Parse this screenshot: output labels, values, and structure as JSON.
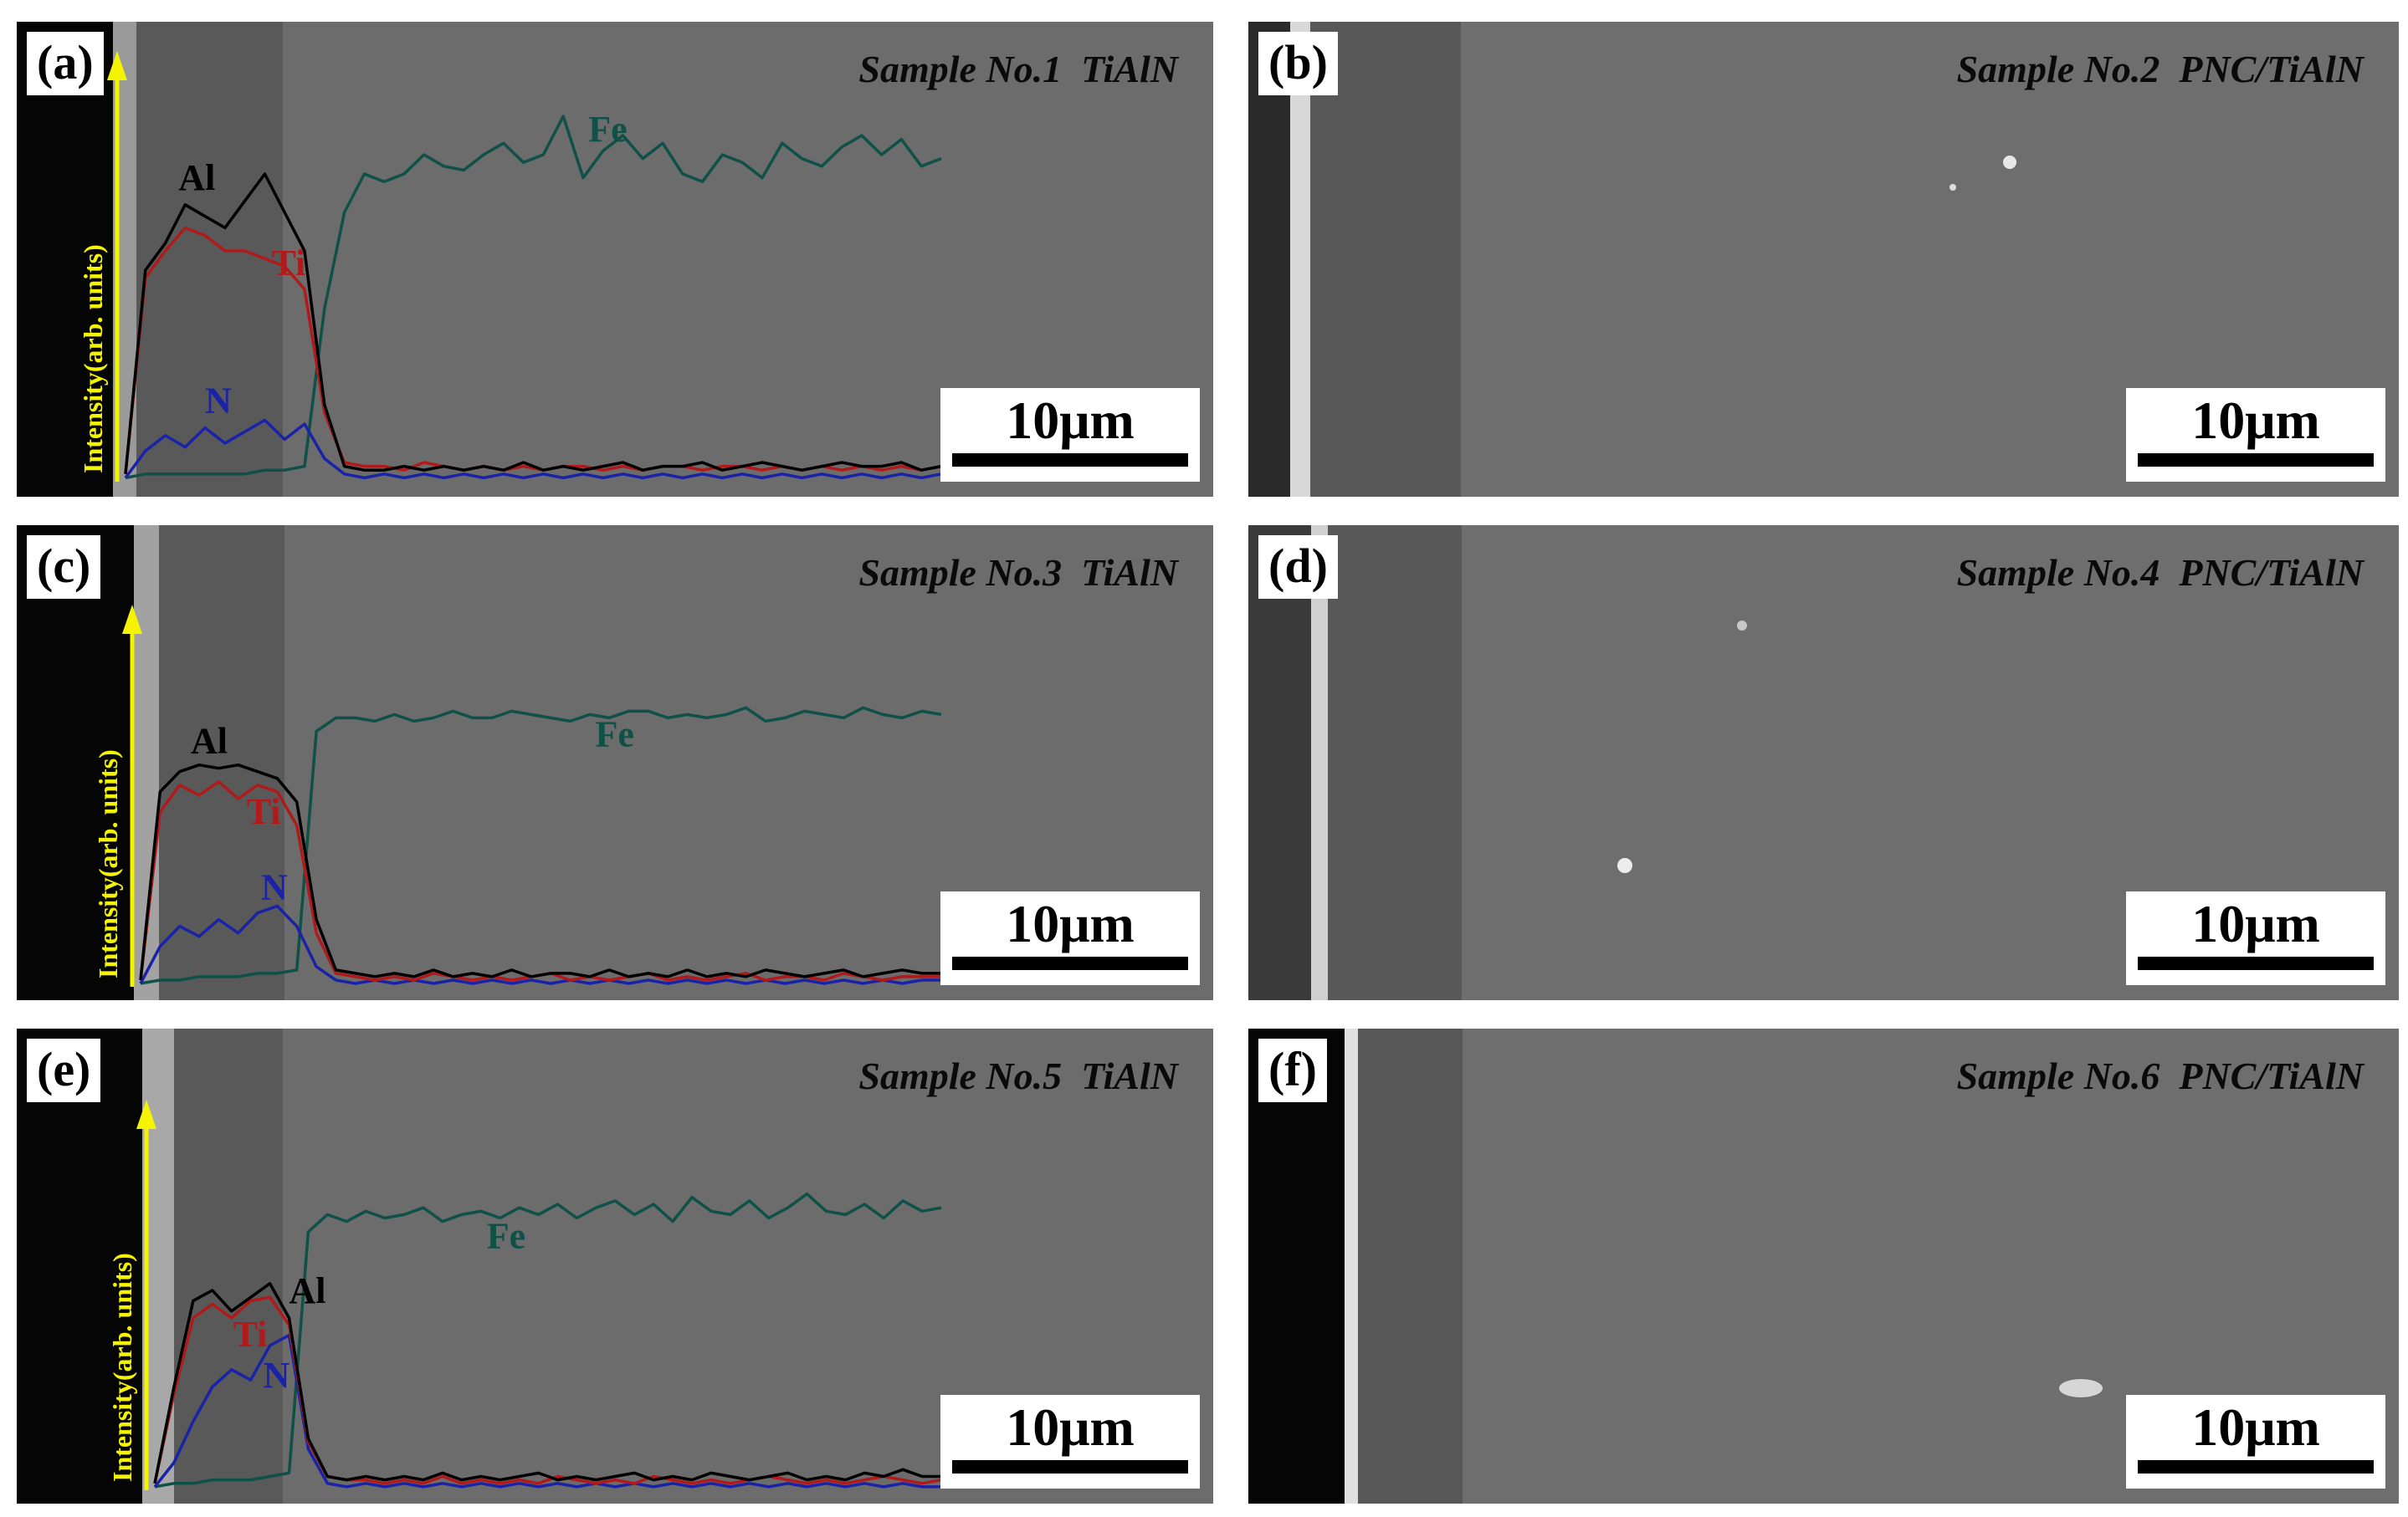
{
  "panels": [
    {
      "label": "(a)",
      "title": "Sample No.1  TiAlN",
      "scale": "10μm",
      "has_profile": true,
      "axis_label": "Intensity(arb. units)",
      "element_labels": {
        "Al": "Al",
        "Ti": "Ti",
        "N": "N",
        "Fe": "Fe"
      }
    },
    {
      "label": "(b)",
      "title": "Sample No.2  PNC/TiAlN",
      "scale": "10μm",
      "has_profile": false
    },
    {
      "label": "(c)",
      "title": "Sample No.3  TiAlN",
      "scale": "10μm",
      "has_profile": true,
      "axis_label": "Intensity(arb. units)",
      "element_labels": {
        "Al": "Al",
        "Ti": "Ti",
        "N": "N",
        "Fe": "Fe"
      }
    },
    {
      "label": "(d)",
      "title": "Sample No.4  PNC/TiAlN",
      "scale": "10μm",
      "has_profile": false
    },
    {
      "label": "(e)",
      "title": "Sample No.5  TiAlN",
      "scale": "10μm",
      "has_profile": true,
      "axis_label": "Intensity(arb. units)",
      "element_labels": {
        "Al": "Al",
        "Ti": "Ti",
        "N": "N",
        "Fe": "Fe"
      }
    },
    {
      "label": "(f)",
      "title": "Sample No.6  PNC/TiAlN",
      "scale": "10μm",
      "has_profile": false
    }
  ],
  "colors": {
    "Al": "#000000",
    "Ti": "#b01a1a",
    "N": "#1a22a8",
    "Fe": "#0f5048",
    "axis": "#f4f400",
    "sem_background": "#6e6e6e",
    "coating": "#5a5a5a"
  },
  "chart_data": [
    {
      "type": "line",
      "panel": "(a)",
      "series": [
        {
          "name": "Al",
          "values": [
            2,
            55,
            62,
            72,
            69,
            66,
            73,
            80,
            70,
            60,
            20,
            4,
            3,
            3,
            4,
            3,
            4,
            3,
            4,
            3,
            5,
            3,
            4,
            3,
            4,
            5,
            3,
            4,
            4,
            5,
            3,
            4,
            5,
            4,
            3,
            4,
            5,
            4,
            4,
            5,
            3,
            4
          ]
        },
        {
          "name": "Ti",
          "values": [
            2,
            53,
            60,
            66,
            64,
            60,
            60,
            58,
            56,
            50,
            18,
            5,
            4,
            4,
            3,
            5,
            4,
            3,
            4,
            3,
            4,
            3,
            4,
            4,
            3,
            4,
            3,
            4,
            4,
            3,
            4,
            4,
            3,
            4,
            3,
            4,
            3,
            4,
            3,
            4,
            3,
            4
          ]
        },
        {
          "name": "N",
          "values": [
            1,
            8,
            12,
            9,
            14,
            10,
            13,
            16,
            11,
            15,
            6,
            2,
            1,
            2,
            1,
            2,
            1,
            2,
            1,
            2,
            1,
            2,
            1,
            2,
            1,
            2,
            1,
            2,
            1,
            2,
            1,
            2,
            1,
            2,
            1,
            2,
            1,
            2,
            1,
            2,
            1,
            2
          ]
        },
        {
          "name": "Fe",
          "values": [
            1,
            2,
            2,
            2,
            2,
            2,
            2,
            3,
            3,
            4,
            45,
            70,
            80,
            78,
            80,
            85,
            82,
            81,
            85,
            88,
            83,
            85,
            95,
            79,
            86,
            90,
            84,
            88,
            80,
            78,
            85,
            83,
            79,
            88,
            84,
            82,
            87,
            90,
            85,
            89,
            82,
            84
          ]
        }
      ]
    },
    {
      "type": "line",
      "panel": "(c)",
      "series": [
        {
          "name": "Al",
          "values": [
            2,
            58,
            64,
            66,
            65,
            66,
            64,
            62,
            55,
            20,
            5,
            4,
            3,
            4,
            3,
            5,
            3,
            4,
            3,
            5,
            3,
            4,
            4,
            3,
            5,
            3,
            4,
            3,
            5,
            3,
            4,
            3,
            5,
            4,
            3,
            4,
            5,
            3,
            4,
            5,
            4,
            4
          ]
        },
        {
          "name": "Ti",
          "values": [
            2,
            52,
            60,
            57,
            61,
            56,
            60,
            58,
            48,
            16,
            4,
            3,
            2,
            3,
            2,
            4,
            3,
            2,
            3,
            2,
            3,
            4,
            2,
            3,
            2,
            3,
            4,
            2,
            3,
            2,
            3,
            4,
            2,
            3,
            3,
            2,
            4,
            3,
            2,
            3,
            3,
            3
          ]
        },
        {
          "name": "N",
          "values": [
            1,
            12,
            18,
            15,
            20,
            16,
            22,
            24,
            18,
            6,
            2,
            1,
            2,
            1,
            2,
            1,
            2,
            1,
            2,
            1,
            2,
            1,
            2,
            1,
            2,
            1,
            2,
            1,
            2,
            1,
            2,
            1,
            2,
            1,
            2,
            1,
            2,
            1,
            2,
            1,
            2,
            2
          ]
        },
        {
          "name": "Fe",
          "values": [
            1,
            2,
            2,
            3,
            3,
            3,
            4,
            4,
            5,
            76,
            80,
            80,
            79,
            81,
            79,
            80,
            82,
            80,
            80,
            82,
            81,
            80,
            79,
            81,
            80,
            82,
            82,
            80,
            81,
            80,
            81,
            83,
            79,
            80,
            82,
            81,
            80,
            83,
            81,
            80,
            82,
            81
          ]
        }
      ]
    },
    {
      "type": "line",
      "panel": "(e)",
      "series": [
        {
          "name": "Al",
          "values": [
            2,
            30,
            55,
            58,
            52,
            56,
            60,
            50,
            15,
            4,
            3,
            4,
            3,
            4,
            3,
            5,
            3,
            4,
            3,
            4,
            5,
            3,
            4,
            3,
            4,
            5,
            3,
            4,
            3,
            5,
            4,
            3,
            4,
            5,
            3,
            4,
            3,
            5,
            4,
            6,
            4,
            4
          ]
        },
        {
          "name": "Ti",
          "values": [
            2,
            28,
            50,
            54,
            50,
            55,
            56,
            48,
            14,
            4,
            3,
            3,
            2,
            3,
            2,
            4,
            2,
            3,
            2,
            3,
            2,
            4,
            3,
            2,
            3,
            2,
            4,
            3,
            2,
            3,
            2,
            3,
            4,
            3,
            2,
            3,
            2,
            3,
            4,
            3,
            2,
            3
          ]
        },
        {
          "name": "N",
          "values": [
            1,
            8,
            20,
            30,
            35,
            32,
            42,
            45,
            12,
            2,
            1,
            2,
            1,
            2,
            1,
            2,
            1,
            2,
            1,
            2,
            1,
            2,
            1,
            2,
            1,
            2,
            1,
            2,
            1,
            2,
            1,
            2,
            1,
            2,
            1,
            2,
            1,
            2,
            1,
            2,
            1,
            1
          ]
        },
        {
          "name": "Fe",
          "values": [
            1,
            2,
            2,
            3,
            3,
            3,
            4,
            5,
            75,
            80,
            78,
            81,
            79,
            80,
            82,
            78,
            80,
            81,
            79,
            82,
            80,
            83,
            79,
            82,
            84,
            80,
            83,
            78,
            85,
            81,
            80,
            84,
            79,
            82,
            86,
            81,
            80,
            83,
            79,
            84,
            81,
            82
          ]
        }
      ]
    }
  ]
}
